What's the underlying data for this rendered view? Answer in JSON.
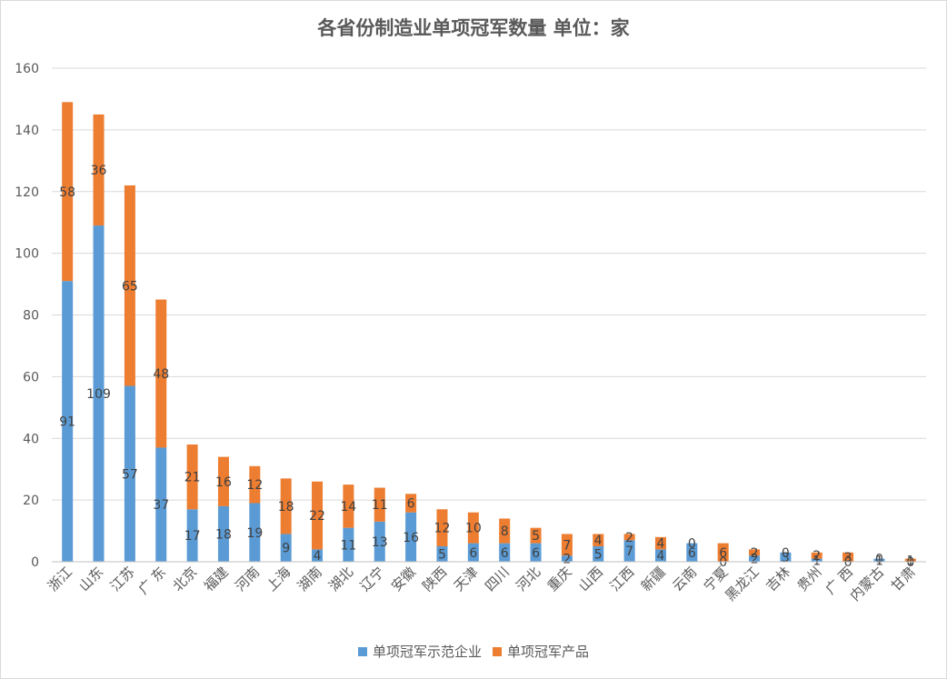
{
  "chart_data": {
    "type": "bar",
    "stacked": true,
    "title": "各省份制造业单项冠军数量 单位：家",
    "xlabel": "",
    "ylabel": "",
    "ylim": [
      0,
      160
    ],
    "yticks": [
      0,
      20,
      40,
      60,
      80,
      100,
      120,
      140,
      160
    ],
    "grid": true,
    "legend_position": "bottom",
    "categories": [
      "浙江",
      "山东",
      "江苏",
      "广 东",
      "北京",
      "福建",
      "河南",
      "上海",
      "湖南",
      "湖北",
      "辽宁",
      "安徽",
      "陕西",
      "天津",
      "四川",
      "河北",
      "重庆",
      "山西",
      "江西",
      "新疆",
      "云南",
      "宁夏",
      "黑龙江",
      "吉林",
      "贵州",
      "广 西",
      "内蒙古",
      "甘肃"
    ],
    "series": [
      {
        "name": "单项冠军示范企业",
        "color": "#5b9bd5",
        "values": [
          91,
          109,
          57,
          37,
          17,
          18,
          19,
          9,
          4,
          11,
          13,
          16,
          5,
          6,
          6,
          6,
          2,
          5,
          7,
          4,
          6,
          0,
          2,
          3,
          1,
          0,
          1,
          0
        ]
      },
      {
        "name": "单项冠军产品",
        "color": "#ed7d31",
        "values": [
          58,
          36,
          65,
          48,
          21,
          16,
          12,
          18,
          22,
          14,
          11,
          6,
          12,
          10,
          8,
          5,
          7,
          4,
          2,
          4,
          0,
          6,
          2,
          0,
          2,
          3,
          0,
          1
        ]
      }
    ]
  }
}
